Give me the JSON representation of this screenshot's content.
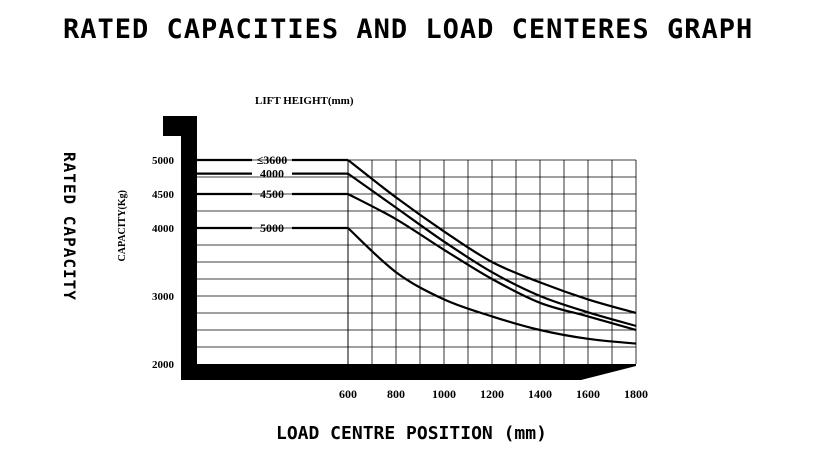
{
  "chart_data": {
    "type": "line",
    "title": "RATED CAPACITIES AND LOAD CENTERES GRAPH",
    "xlabel": "LOAD CENTRE POSITION (mm)",
    "ylabel": "CAPACITY(Kg)",
    "ylabel_outer": "RATED CAPACITY",
    "legend_title": "LIFT HEIGHT(mm)",
    "x_ticks": [
      "600",
      "800",
      "1000",
      "1200",
      "1400",
      "1600",
      "1800"
    ],
    "y_ticks": [
      "5000",
      "4500",
      "4000",
      "3000",
      "2000"
    ],
    "xlim": [
      600,
      1800
    ],
    "ylim": [
      2000,
      5000
    ],
    "grid": true,
    "series": [
      {
        "name": "≤3600",
        "x": [
          600,
          800,
          1000,
          1200,
          1400,
          1600,
          1800
        ],
        "y": [
          5000,
          4450,
          3950,
          3500,
          3200,
          2950,
          2750
        ]
      },
      {
        "name": "4000",
        "x": [
          600,
          800,
          1000,
          1200,
          1400,
          1600,
          1800
        ],
        "y": [
          4800,
          4300,
          3800,
          3350,
          3000,
          2760,
          2560
        ]
      },
      {
        "name": "4500",
        "x": [
          600,
          800,
          1000,
          1200,
          1400,
          1600,
          1800
        ],
        "y": [
          4500,
          4130,
          3680,
          3250,
          2900,
          2700,
          2500
        ]
      },
      {
        "name": "5000",
        "x": [
          600,
          800,
          1000,
          1200,
          1400,
          1600,
          1800
        ],
        "y": [
          4000,
          3350,
          2950,
          2700,
          2500,
          2370,
          2300
        ]
      }
    ]
  }
}
